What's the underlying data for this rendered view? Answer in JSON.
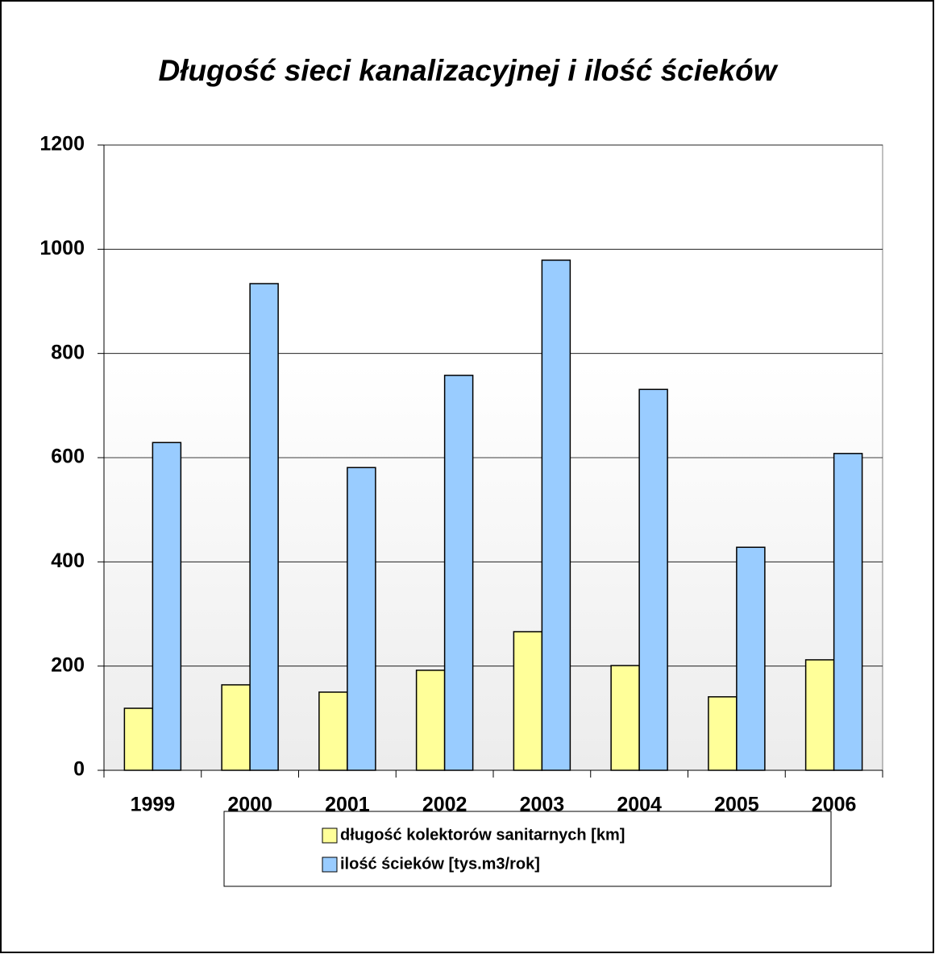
{
  "chart_data": {
    "type": "bar",
    "title": "Długość sieci kanalizacyjnej i ilość ścieków",
    "categories": [
      "1999",
      "2000",
      "2001",
      "2002",
      "2003",
      "2004",
      "2005",
      "2006"
    ],
    "series": [
      {
        "name": "długość kolektorów sanitarnych [km]",
        "color": "#ffff99",
        "values": [
          119,
          164,
          150,
          192,
          266,
          201,
          141,
          212
        ]
      },
      {
        "name": "ilość ścieków [tys.m3/rok]",
        "color": "#99ccff",
        "values": [
          629,
          934,
          581,
          758,
          979,
          731,
          428,
          608
        ]
      }
    ],
    "ylim": [
      0,
      1200
    ],
    "yticks": [
      0,
      200,
      400,
      600,
      800,
      1000,
      1200
    ],
    "grid": true,
    "legend": "bottom"
  }
}
